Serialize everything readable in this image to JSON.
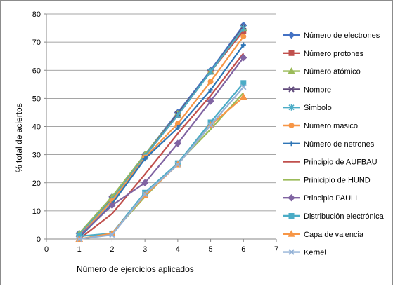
{
  "chart_data": {
    "type": "line",
    "xlabel": "Número de ejercicios aplicados",
    "ylabel": "% total de aciertos",
    "xlim": [
      0,
      7
    ],
    "ylim": [
      0,
      80
    ],
    "xticks": [
      "0",
      "1",
      "2",
      "3",
      "4",
      "5",
      "6",
      "7"
    ],
    "yticks": [
      "0",
      "10",
      "20",
      "30",
      "40",
      "50",
      "60",
      "70",
      "80"
    ],
    "grid": "horizontal",
    "legend": "right",
    "x": [
      1,
      2,
      3,
      4,
      5,
      6
    ],
    "series": [
      {
        "name": "Número de electrones",
        "color": "#4472c4",
        "marker": "diamond",
        "values": [
          2,
          15,
          30,
          45,
          60,
          76
        ]
      },
      {
        "name": "Número protones",
        "color": "#c0504d",
        "marker": "square",
        "values": [
          1.5,
          14.5,
          29.5,
          44,
          59.5,
          74
        ]
      },
      {
        "name": "Número atómico",
        "color": "#9bbb59",
        "marker": "triangle",
        "values": [
          2,
          15,
          30,
          44.5,
          59.5,
          75
        ]
      },
      {
        "name": "Nombre",
        "color": "#604a7b",
        "marker": "x",
        "values": [
          1.5,
          14,
          29.5,
          44.5,
          59.5,
          75.5
        ]
      },
      {
        "name": "Simbolo",
        "color": "#4bacc6",
        "marker": "star",
        "values": [
          1.5,
          14,
          29.5,
          44,
          59.5,
          75
        ]
      },
      {
        "name": "Número masico",
        "color": "#f79646",
        "marker": "circle",
        "values": [
          1,
          13.5,
          29,
          41,
          56,
          72
        ]
      },
      {
        "name": "Número de netrones",
        "color": "#2e75b6",
        "marker": "plus",
        "values": [
          0.5,
          12.5,
          28.5,
          39.5,
          53,
          69
        ]
      },
      {
        "name": "Principio de AUFBAU",
        "color": "#c0504d",
        "marker": "none",
        "values": [
          0,
          9,
          23,
          37.5,
          51,
          66
        ]
      },
      {
        "name": "Prinicipio de HUND",
        "color": "#9bbb59",
        "marker": "none",
        "values": [
          0,
          2,
          15,
          27,
          39,
          52
        ]
      },
      {
        "name": "Principio PAULI",
        "color": "#8064a2",
        "marker": "diamond",
        "values": [
          1,
          12,
          20,
          34,
          49,
          64.5
        ]
      },
      {
        "name": "Distribución electrónica",
        "color": "#4bacc6",
        "marker": "square",
        "values": [
          1,
          2,
          16.5,
          27,
          41.5,
          55.5
        ]
      },
      {
        "name": "Capa de valencia",
        "color": "#f79646",
        "marker": "triangle",
        "values": [
          0,
          2,
          15.5,
          26.5,
          40.5,
          50.5
        ]
      },
      {
        "name": "Kernel",
        "color": "#95b3d7",
        "marker": "x",
        "values": [
          0,
          1.5,
          16,
          26.5,
          40.5,
          54
        ]
      }
    ]
  }
}
